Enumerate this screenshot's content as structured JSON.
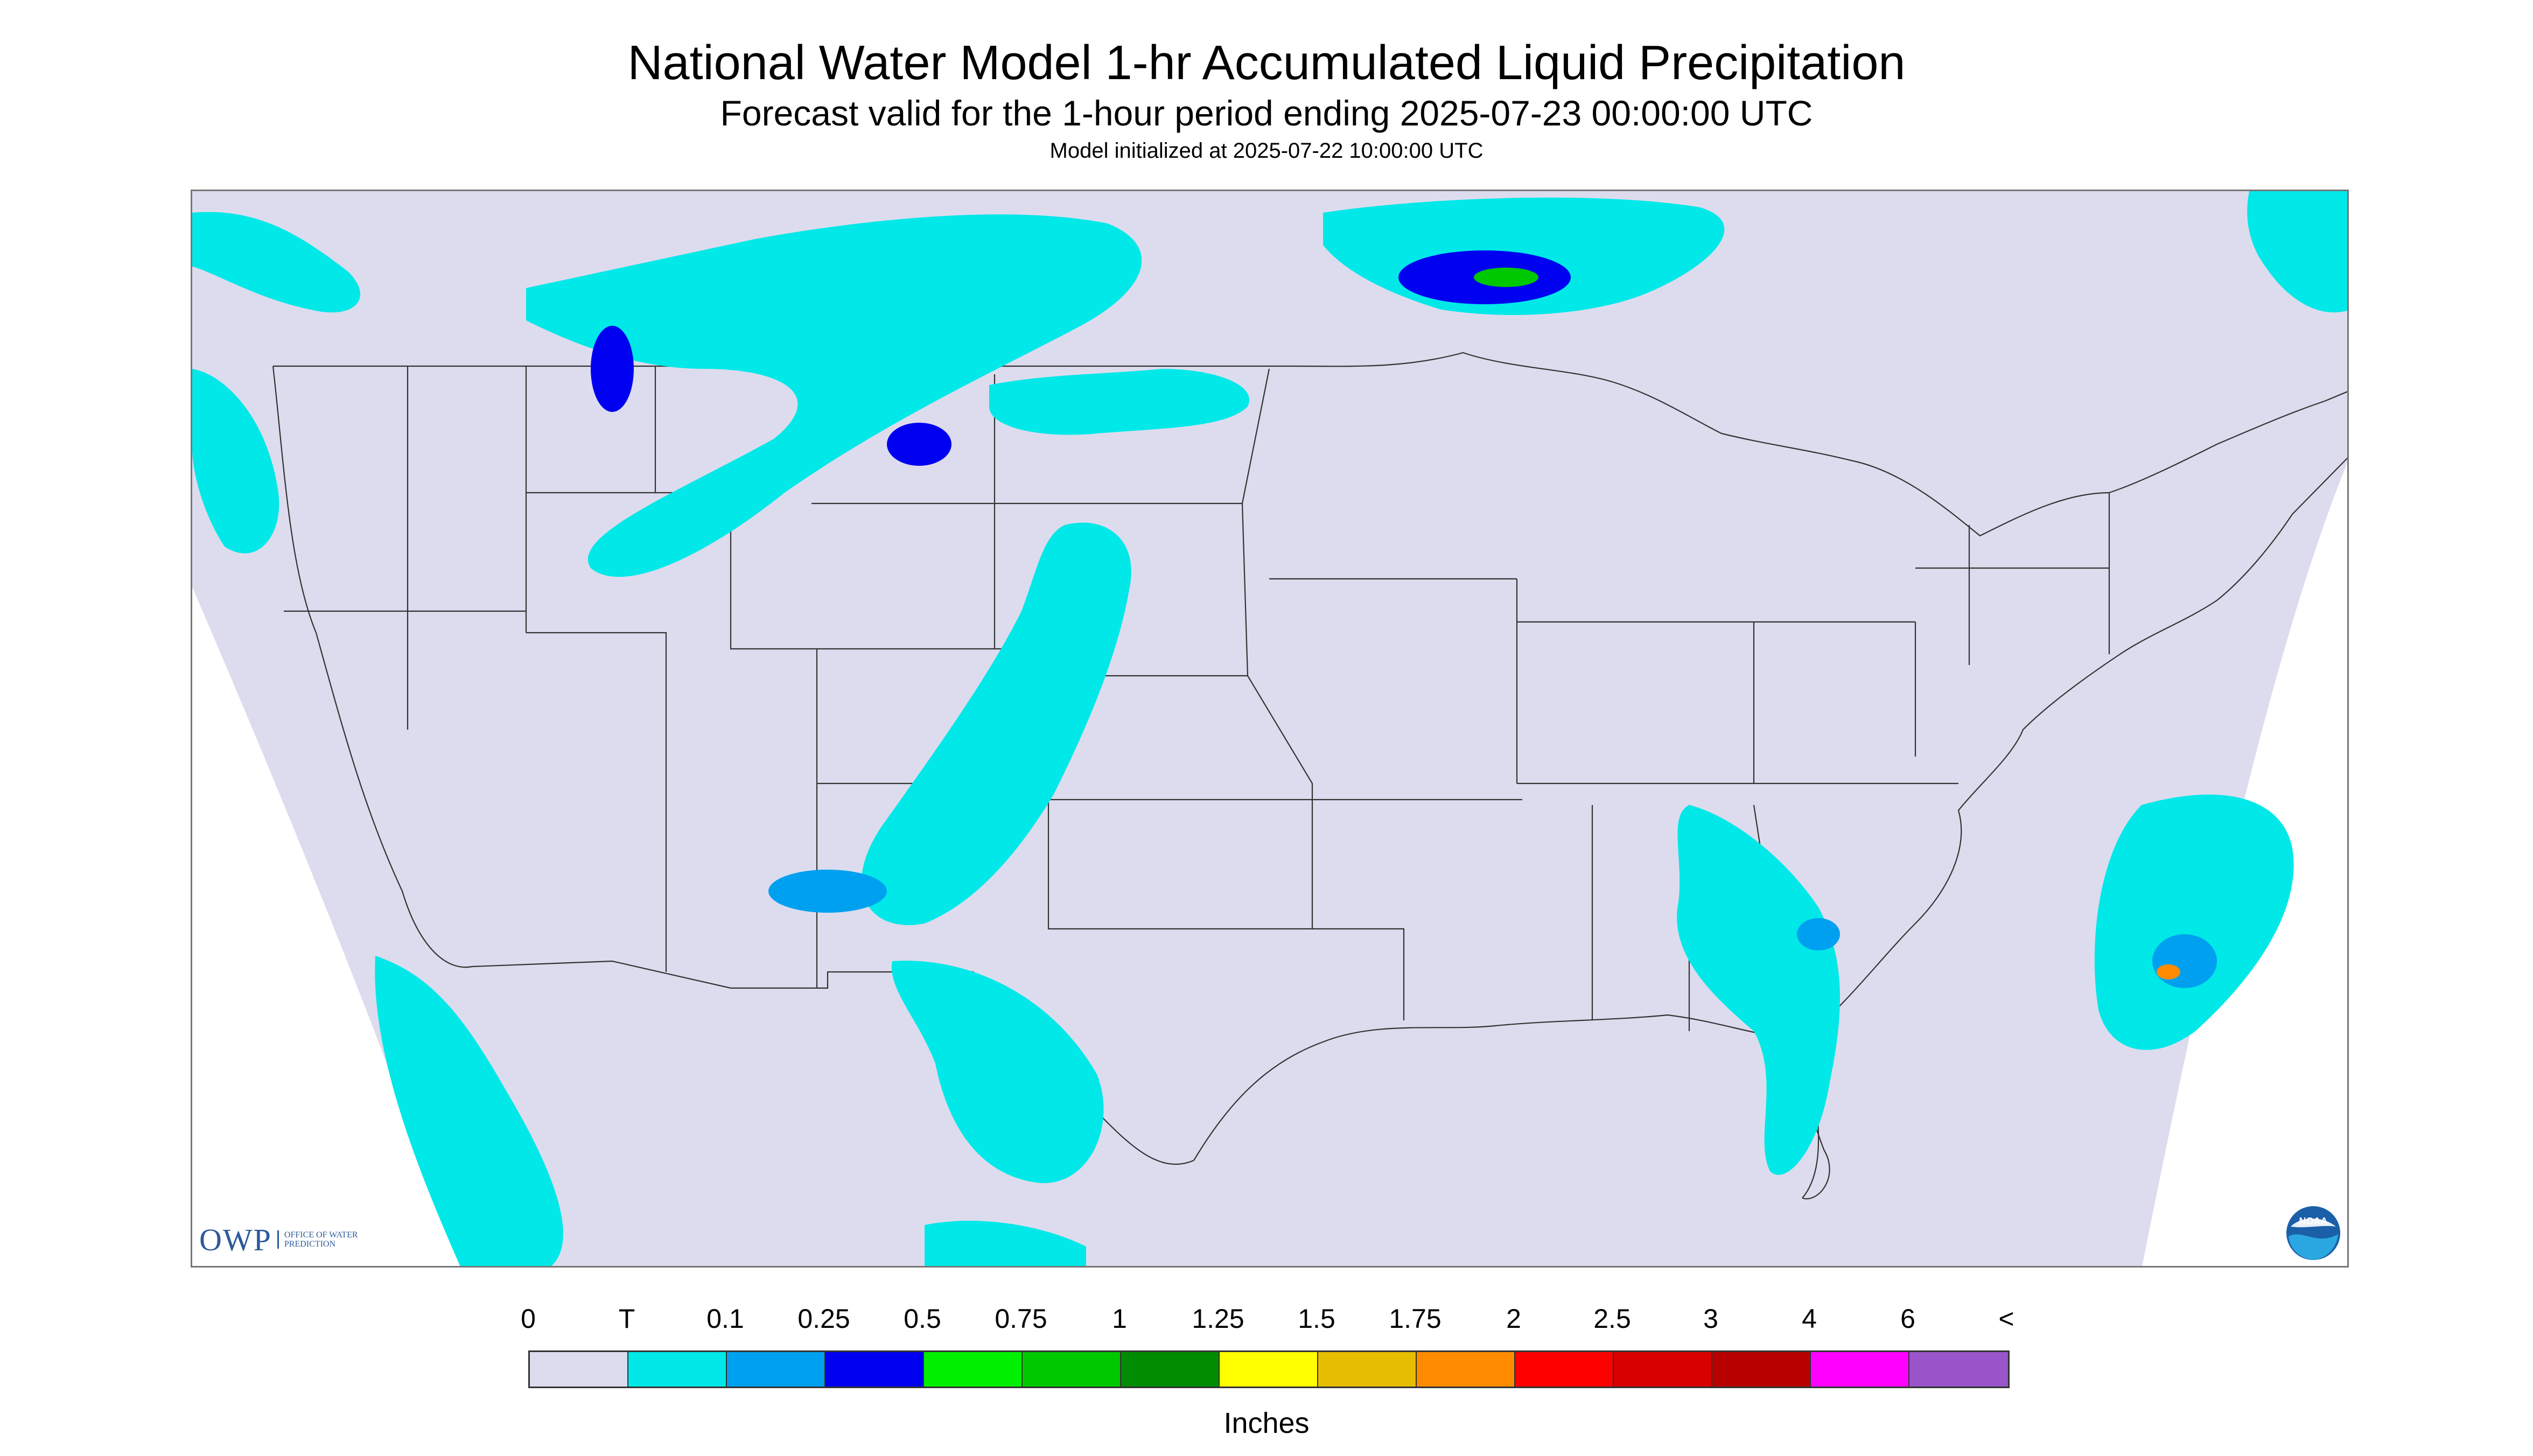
{
  "header": {
    "title": "National Water Model 1-hr Accumulated Liquid Precipitation",
    "subtitle": "Forecast valid for the 1-hour period ending 2025-07-23 00:00:00 UTC",
    "init_line": "Model initialized at 2025-07-22 10:00:00 UTC"
  },
  "map": {
    "domain_fill_color": "#dcdcee",
    "boundary_color": "#333333",
    "precip_colors": [
      "#00e8e8",
      "#00a0f0",
      "#0000f0",
      "#00f000",
      "#00c800",
      "#008c00",
      "#ffff00",
      "#e6bd00",
      "#ff8c00",
      "#ff0000",
      "#d80000",
      "#b80000",
      "#ff00ff",
      "#9955c9"
    ]
  },
  "legend": {
    "labels": [
      "0",
      "T",
      "0.1",
      "0.25",
      "0.5",
      "0.75",
      "1",
      "1.25",
      "1.5",
      "1.75",
      "2",
      "2.5",
      "3",
      "4",
      "6",
      "<"
    ],
    "colors": [
      "#dcdcee",
      "#00e8e8",
      "#00a0f0",
      "#0000f0",
      "#00f000",
      "#00c800",
      "#008c00",
      "#ffff00",
      "#e6bd00",
      "#ff8c00",
      "#ff0000",
      "#d80000",
      "#b80000",
      "#ff00ff",
      "#9955c9"
    ],
    "unit": "Inches"
  },
  "logos": {
    "owp_text": "OWP",
    "owp_subtext": "OFFICE OF WATER PREDICTION",
    "noaa_text": "NOAA"
  }
}
